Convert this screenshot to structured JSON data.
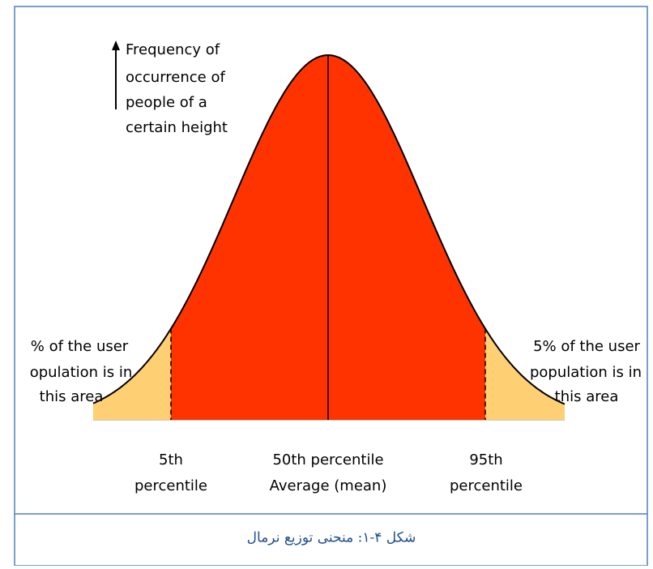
{
  "axis_label": [
    "Frequency of",
    "occurrence of",
    "people of a",
    "certain height"
  ],
  "left_area_note": [
    "% of the user",
    "opulation is in",
    "this area"
  ],
  "right_area_note": [
    "5% of the user",
    "population is in",
    "this area"
  ],
  "markers": [
    {
      "lines": [
        "5th",
        "percentile"
      ]
    },
    {
      "lines": [
        "50th percentile",
        "Average (mean)"
      ]
    },
    {
      "lines": [
        "95th",
        "percentile"
      ]
    }
  ],
  "caption": "شکل ۴-۱: منحنی توزیع نرمال"
}
